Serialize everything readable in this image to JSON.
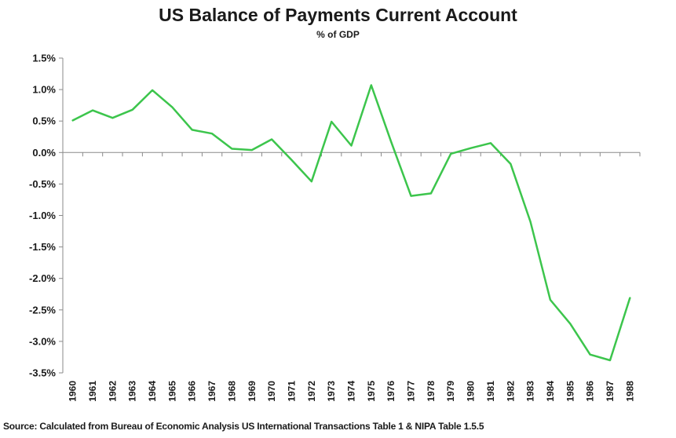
{
  "chart_data": {
    "type": "line",
    "title": "US Balance of Payments Current Account",
    "subtitle": "% of GDP",
    "source": "Source: Calculated from Bureau of Economic Analysis US International Transactions Table 1 & NIPA Table 1.5.5",
    "ylim": [
      -3.5,
      1.5
    ],
    "y_ticks": [
      1.5,
      1.0,
      0.5,
      0.0,
      -0.5,
      -1.0,
      -1.5,
      -2.0,
      -2.5,
      -3.0,
      -3.5
    ],
    "y_tick_labels": [
      "1.5%",
      "1.0%",
      "0.5%",
      "0.0%",
      "-0.5%",
      "-1.0%",
      "-1.5%",
      "-2.0%",
      "-2.5%",
      "-3.0%",
      "-3.5%"
    ],
    "x": [
      "1960",
      "1961",
      "1962",
      "1963",
      "1964",
      "1965",
      "1966",
      "1967",
      "1968",
      "1969",
      "1970",
      "1971",
      "1972",
      "1973",
      "1974",
      "1975",
      "1976",
      "1977",
      "1978",
      "1979",
      "1980",
      "1981",
      "1982",
      "1983",
      "1984",
      "1985",
      "1986",
      "1987",
      "1988"
    ],
    "series": [
      {
        "values": [
          0.51,
          0.67,
          0.55,
          0.68,
          0.99,
          0.72,
          0.36,
          0.3,
          0.06,
          0.04,
          0.21,
          -0.12,
          -0.46,
          0.49,
          0.11,
          1.07,
          0.17,
          -0.69,
          -0.65,
          -0.02,
          0.07,
          0.15,
          -0.18,
          -1.1,
          -2.34,
          -2.72,
          -3.21,
          -3.3,
          -2.31
        ],
        "color": "#3cc54c"
      }
    ],
    "grid": false,
    "legend": "none"
  }
}
